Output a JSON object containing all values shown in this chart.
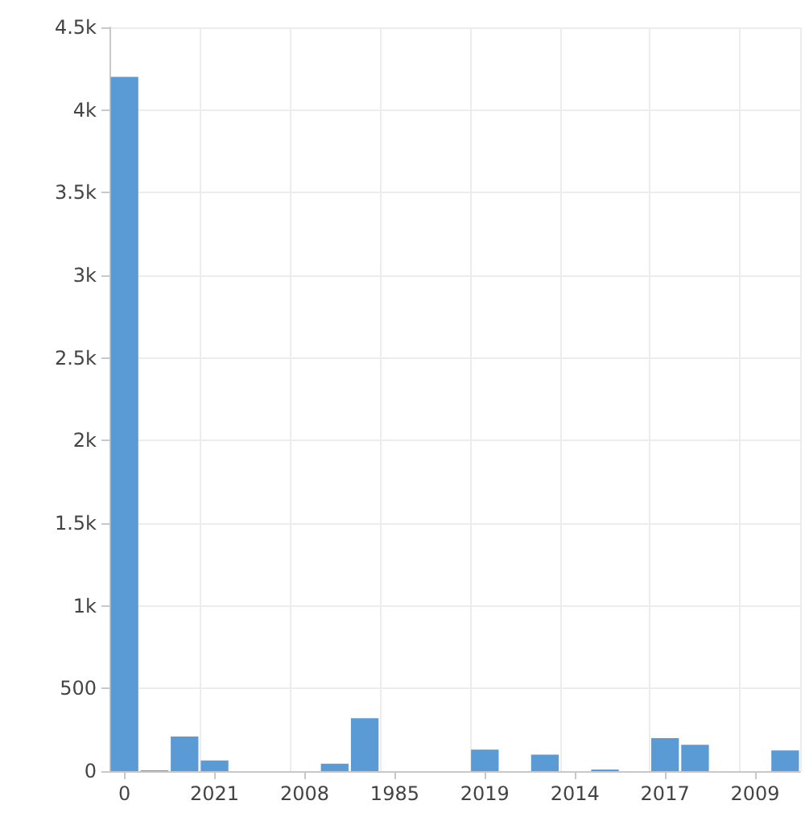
{
  "chart_data": {
    "type": "bar",
    "categories": [
      "0",
      null,
      null,
      "2021",
      null,
      null,
      "2008",
      null,
      null,
      "1985",
      null,
      null,
      "2019",
      null,
      null,
      "2014",
      null,
      null,
      "2017",
      null,
      null,
      "2009",
      null
    ],
    "values": [
      4200,
      5,
      210,
      65,
      0,
      0,
      0,
      45,
      320,
      0,
      0,
      0,
      130,
      0,
      100,
      0,
      10,
      0,
      200,
      160,
      0,
      0,
      125
    ],
    "color": "#5b9bd5",
    "ylim": [
      0,
      4500
    ],
    "yticks": [
      0,
      500,
      {
        "value": 1000,
        "label": "1k"
      },
      {
        "value": 1500,
        "label": "1.5k"
      },
      {
        "value": 2000,
        "label": "2k"
      },
      {
        "value": 2500,
        "label": "2.5k"
      },
      {
        "value": 3000,
        "label": "3k"
      },
      {
        "value": 3500,
        "label": "3.5k"
      },
      {
        "value": 4000,
        "label": "4k"
      },
      {
        "value": 4500,
        "label": "4.5k"
      }
    ],
    "grid": true
  }
}
